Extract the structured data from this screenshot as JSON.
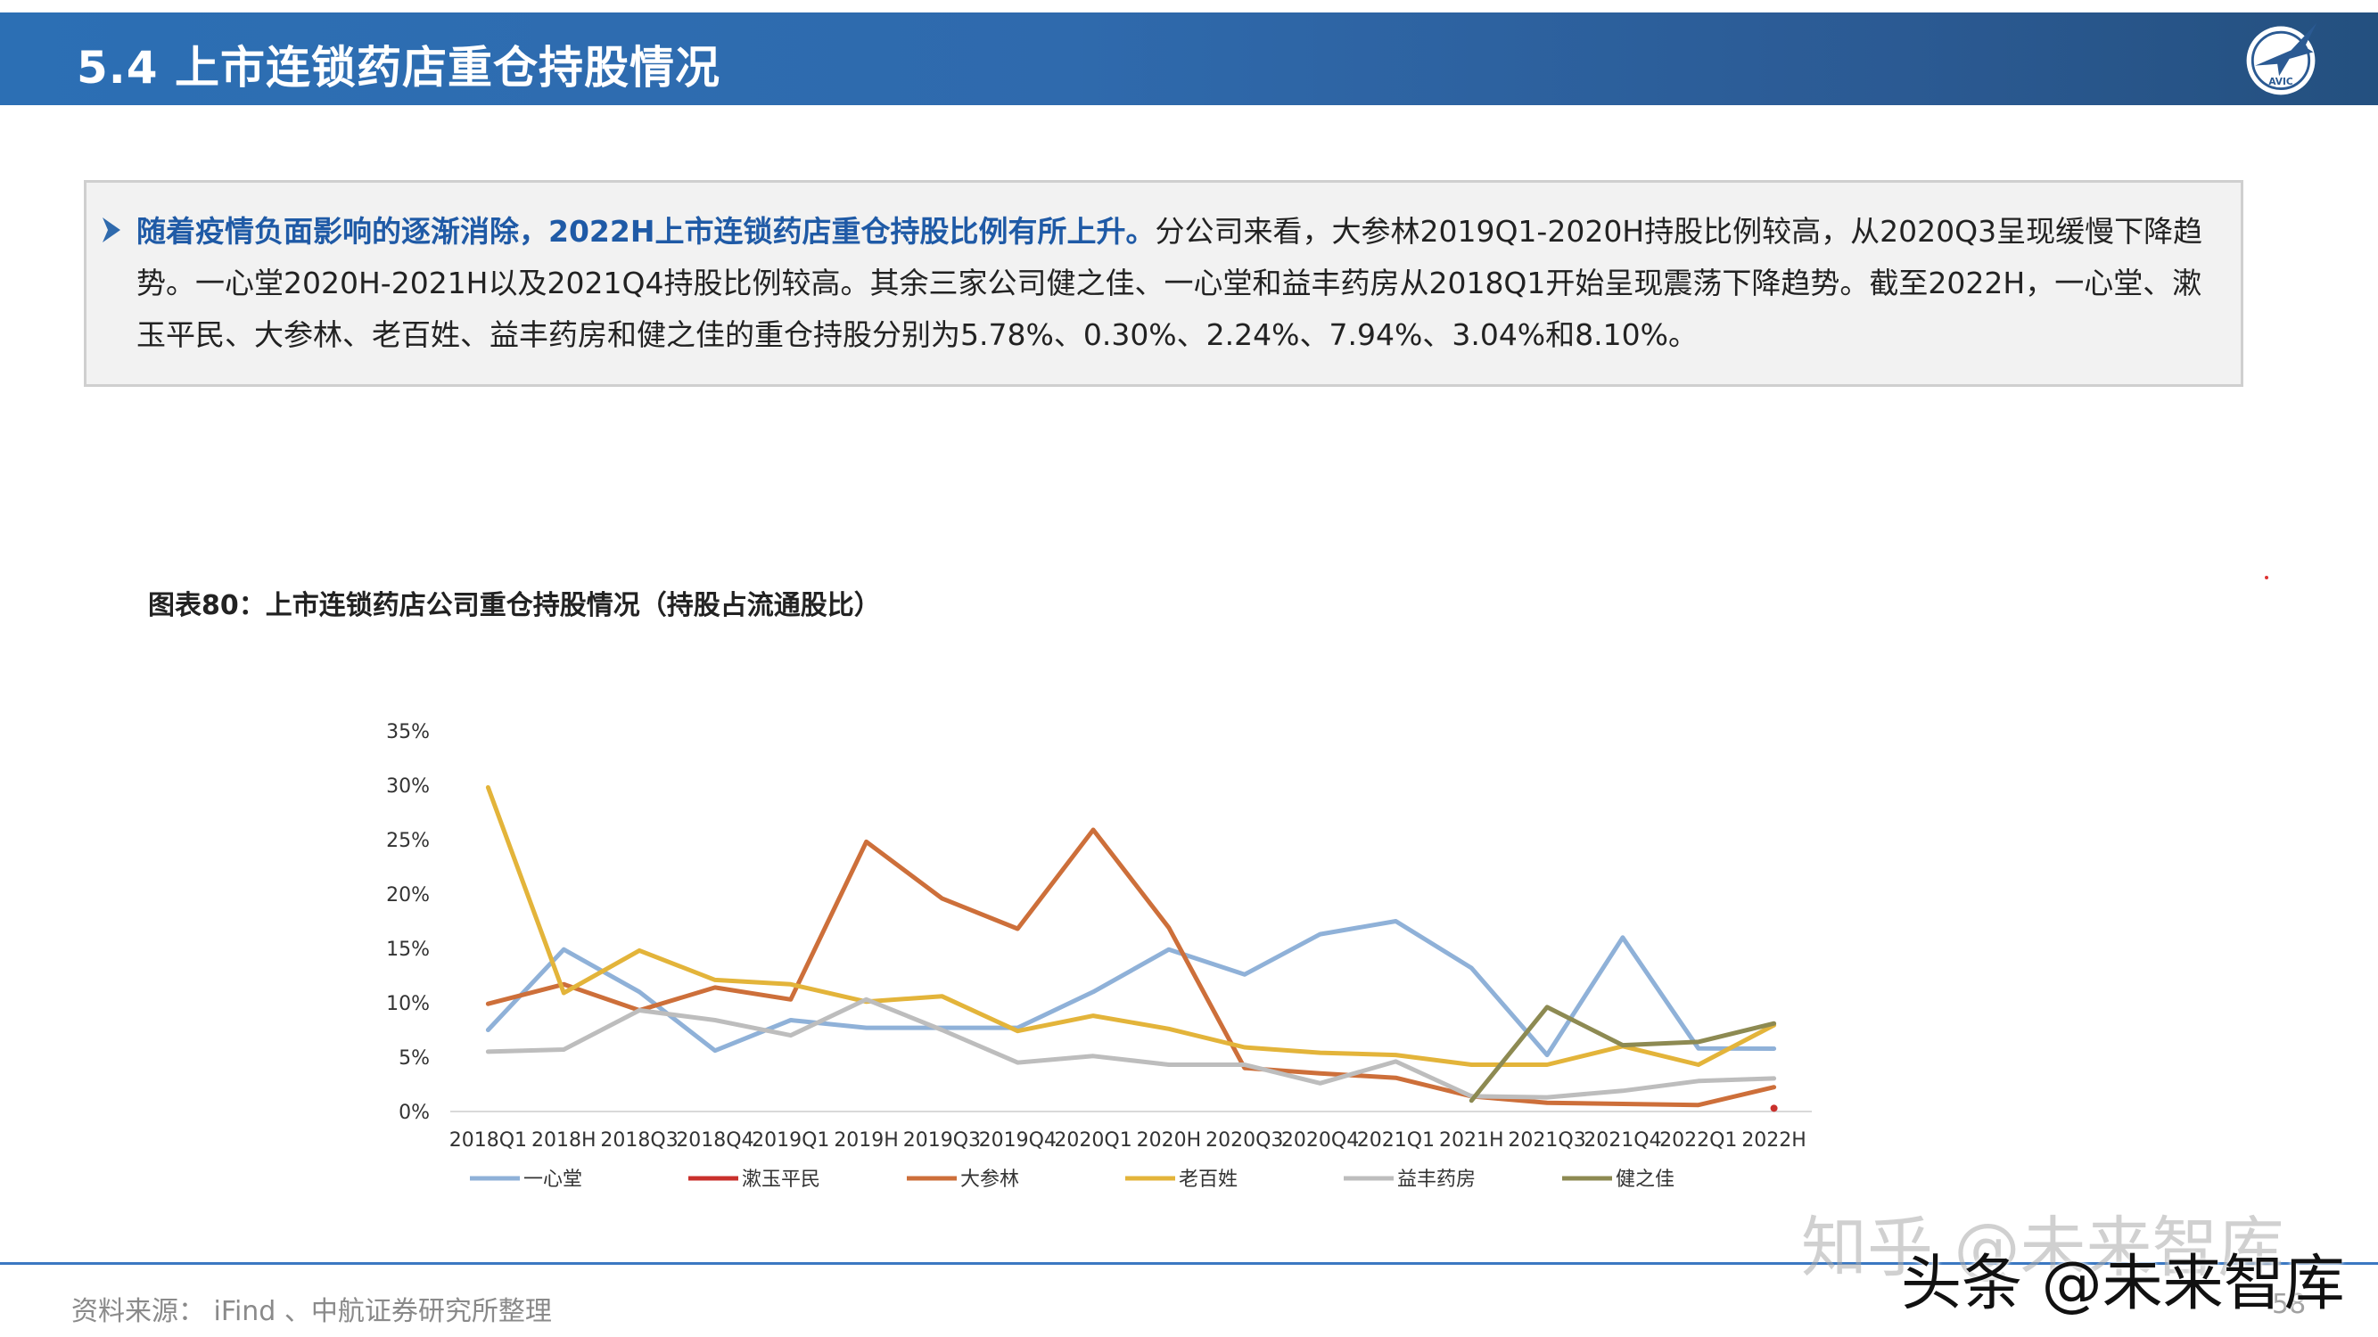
{
  "header": {
    "title": "5.4 上市连锁药店重仓持股情况"
  },
  "logo": {
    "text": "AVIC",
    "icon": "plane-logo-icon"
  },
  "summary": {
    "highlight": "随着疫情负面影响的逐渐消除，2022H上市连锁药店重仓持股比例有所上升。",
    "body": "分公司来看，大参林2019Q1-2020H持股比例较高，从2020Q3呈现缓慢下降趋势。一心堂2020H-2021H以及2021Q4持股比例较高。其余三家公司健之佳、一心堂和益丰药房从2018Q1开始呈现震荡下降趋势。截至2022H，一心堂、漱玉平民、大参林、老百姓、益丰药房和健之佳的重仓持股分别为5.78%、0.30%、2.24%、7.94%、3.04%和8.10%。"
  },
  "figure": {
    "title": "图表80：上市连锁药店公司重仓持股情况（持股占流通股比）"
  },
  "chart_data": {
    "type": "line",
    "categories": [
      "2018Q1",
      "2018H",
      "2018Q3",
      "2018Q4",
      "2019Q1",
      "2019H",
      "2019Q3",
      "2019Q4",
      "2020Q1",
      "2020H",
      "2020Q3",
      "2020Q4",
      "2021Q1",
      "2021H",
      "2021Q3",
      "2021Q4",
      "2022Q1",
      "2022H"
    ],
    "y_ticks": [
      "0%",
      "5%",
      "10%",
      "15%",
      "20%",
      "25%",
      "30%",
      "35%"
    ],
    "ylim": [
      0,
      35
    ],
    "grid": false,
    "legend_position": "bottom",
    "series": [
      {
        "name": "一心堂",
        "color": "#8fb1d8",
        "values": [
          7.5,
          14.9,
          11.0,
          5.6,
          8.4,
          7.7,
          7.7,
          7.7,
          11.0,
          14.9,
          12.6,
          16.3,
          17.5,
          13.2,
          5.2,
          16.0,
          5.8,
          5.78
        ]
      },
      {
        "name": "漱玉平民",
        "color": "#c9302c",
        "values": [
          null,
          null,
          null,
          null,
          null,
          null,
          null,
          null,
          null,
          null,
          null,
          null,
          null,
          null,
          null,
          null,
          null,
          0.3
        ]
      },
      {
        "name": "大参林",
        "color": "#cd6f3a",
        "values": [
          9.9,
          11.7,
          9.3,
          11.4,
          10.3,
          24.8,
          19.6,
          16.8,
          25.9,
          16.9,
          4.0,
          3.5,
          3.1,
          1.4,
          0.8,
          0.7,
          0.6,
          2.24
        ]
      },
      {
        "name": "老百姓",
        "color": "#e3b43a",
        "values": [
          29.8,
          10.9,
          14.8,
          12.1,
          11.7,
          10.1,
          10.6,
          7.4,
          8.8,
          7.6,
          5.9,
          5.4,
          5.2,
          4.3,
          4.3,
          6.0,
          4.3,
          7.94
        ]
      },
      {
        "name": "益丰药房",
        "color": "#bdbdbd",
        "values": [
          5.5,
          5.7,
          9.3,
          8.4,
          7.0,
          10.3,
          7.5,
          4.5,
          5.1,
          4.3,
          4.3,
          2.6,
          4.6,
          1.4,
          1.3,
          1.9,
          2.8,
          3.04
        ]
      },
      {
        "name": "健之佳",
        "color": "#8d8a52",
        "values": [
          null,
          null,
          null,
          null,
          null,
          null,
          null,
          null,
          null,
          null,
          null,
          null,
          null,
          1.0,
          9.6,
          6.1,
          6.4,
          8.1
        ]
      }
    ]
  },
  "footer": {
    "source": "资料来源： iFind 、中航证券研究所整理",
    "page": "58"
  },
  "watermark": {
    "zhihu": "知乎 @未来智库",
    "toutiao": "头条 @未来智库"
  }
}
